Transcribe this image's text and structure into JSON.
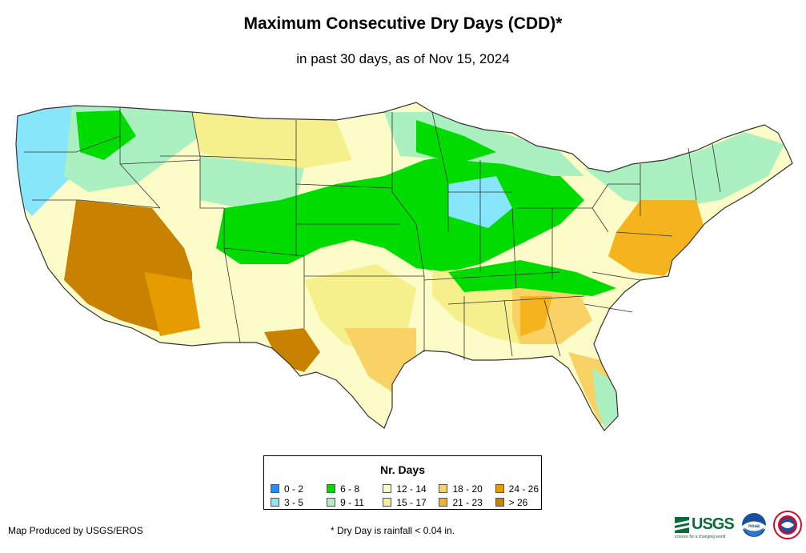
{
  "title": "Maximum Consecutive Dry Days (CDD)*",
  "subtitle": "in past 30 days, as of Nov 15, 2024",
  "legend": {
    "title": "Nr. Days",
    "items": [
      {
        "label": "0 - 2",
        "color": "#1e90ff"
      },
      {
        "label": "3 - 5",
        "color": "#87e6fa"
      },
      {
        "label": "6 - 8",
        "color": "#00dc00"
      },
      {
        "label": "9 - 11",
        "color": "#aaf0c0"
      },
      {
        "label": "12 - 14",
        "color": "#fcfcc8"
      },
      {
        "label": "15 - 17",
        "color": "#f5f08c"
      },
      {
        "label": "18 - 20",
        "color": "#f8d264"
      },
      {
        "label": "21 - 23",
        "color": "#f5b41e"
      },
      {
        "label": "24 - 26",
        "color": "#e69b00"
      },
      {
        "label": "> 26",
        "color": "#c88200"
      }
    ]
  },
  "credit": "Map Produced by USGS/EROS",
  "footnote": "* Dry Day is rainfall < 0.04 in.",
  "logos": {
    "usgs": "USGS",
    "usgs_tagline": "science for a changing world",
    "noaa": "noaa",
    "nws_icon": "nws-seal-icon"
  }
}
